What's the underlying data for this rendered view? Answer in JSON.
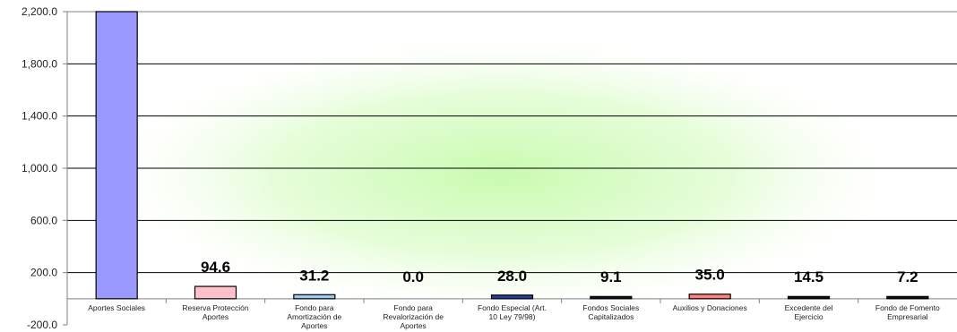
{
  "chart_data": {
    "type": "bar",
    "categories": [
      "Aportes Sociales",
      "Reserva Protección Aportes",
      "Fondo para Amortización de Aportes",
      "Fondo para Revalorización de Aportes",
      "Fondo Especial (Art. 10 Ley 79/98)",
      "Fondos Sociales Capitalizados",
      "Auxilios y Donaciones",
      "Excedente del Ejercicio",
      "Fondo de Fomento Empresarial"
    ],
    "category_lines": [
      [
        "Aportes Sociales"
      ],
      [
        "Reserva Protección",
        "Aportes"
      ],
      [
        "Fondo para",
        "Amortización de",
        "Aportes"
      ],
      [
        "Fondo para",
        "Revalorización de",
        "Aportes"
      ],
      [
        "Fondo Especial (Art.",
        "10 Ley 79/98)"
      ],
      [
        "Fondos Sociales",
        "Capitalizados"
      ],
      [
        "Auxilios y Donaciones"
      ],
      [
        "Excedente del",
        "Ejercicio"
      ],
      [
        "Fondo de Fomento",
        "Empresarial"
      ]
    ],
    "values": [
      2200,
      94.6,
      31.2,
      0.0,
      28.0,
      9.1,
      35.0,
      14.5,
      7.2
    ],
    "data_labels": [
      "",
      "94.6",
      "31.2",
      "0.0",
      "28.0",
      "9.1",
      "35.0",
      "14.5",
      "7.2"
    ],
    "bar_colors": [
      "#9999ff",
      "#ffc0cb",
      "#9ecbf0",
      "#ffffff",
      "#2a3f9f",
      "#111111",
      "#ff7f7f",
      "#111111",
      "#111111"
    ],
    "y_ticks": [
      "2,200.0",
      "1,800.0",
      "1,400.0",
      "1,000.0",
      "600.0",
      "200.0",
      "-200.0"
    ],
    "y_tick_values": [
      2200,
      1800,
      1400,
      1000,
      600,
      200,
      -200
    ],
    "ylim": [
      -200,
      2200
    ],
    "grid": true,
    "colors": {
      "gridline": "#000000",
      "glow": "#ccffb3",
      "axis": "#808080"
    }
  }
}
